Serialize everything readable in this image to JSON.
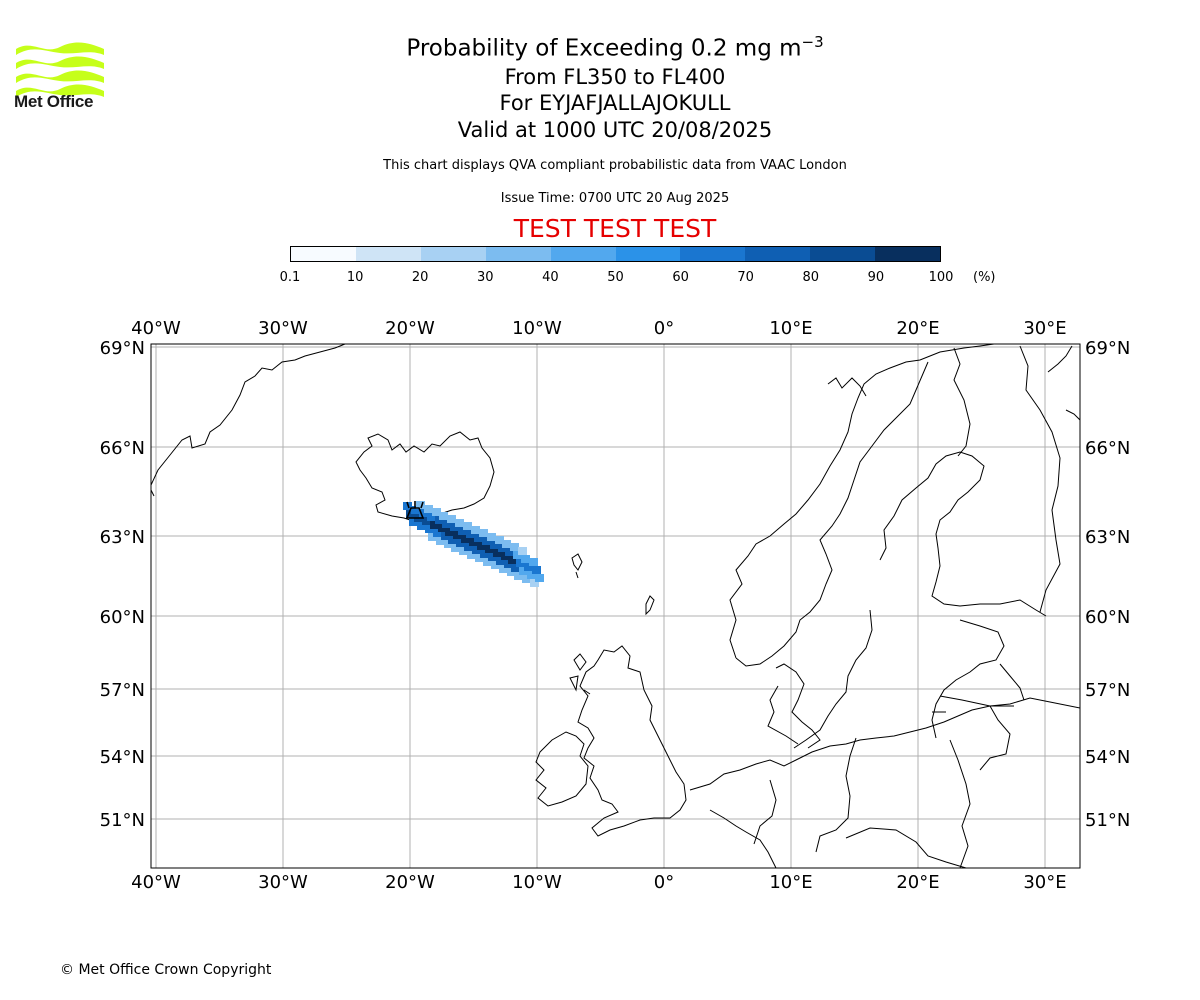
{
  "header": {
    "title_main": "Probability of Exceeding 0.2 mg m",
    "title_sup": "−3",
    "levels": "From FL350 to FL400",
    "volcano": "For EYJAFJALLAJOKULL",
    "valid": "Valid at 1000 UTC 20/08/2025",
    "description": "This chart displays QVA compliant probabilistic data from VAAC London",
    "issue_time": "Issue Time: 0700 UTC 20 Aug 2025",
    "test_banner": "TEST TEST TEST"
  },
  "logo": {
    "text": "Met Office",
    "color": "#c6ff1a"
  },
  "colorbar": {
    "ticks": [
      "0.1",
      "10",
      "20",
      "30",
      "40",
      "50",
      "60",
      "70",
      "80",
      "90",
      "100"
    ],
    "unit": "(%)",
    "colors": [
      "#f7fbff",
      "#cfe4f6",
      "#a8d1f3",
      "#7cbcf0",
      "#52a8ee",
      "#2b92e8",
      "#1a76d0",
      "#0f5fb3",
      "#0a4c93",
      "#082f5e"
    ]
  },
  "map": {
    "lon_ticks": [
      "40°W",
      "30°W",
      "20°W",
      "10°W",
      "0°",
      "10°E",
      "20°E",
      "30°E"
    ],
    "lat_ticks": [
      "69°N",
      "66°N",
      "63°N",
      "60°N",
      "57°N",
      "54°N",
      "51°N"
    ],
    "volcano_icon": "volcano-icon"
  },
  "footer": {
    "copyright": "© Met Office Crown Copyright"
  }
}
